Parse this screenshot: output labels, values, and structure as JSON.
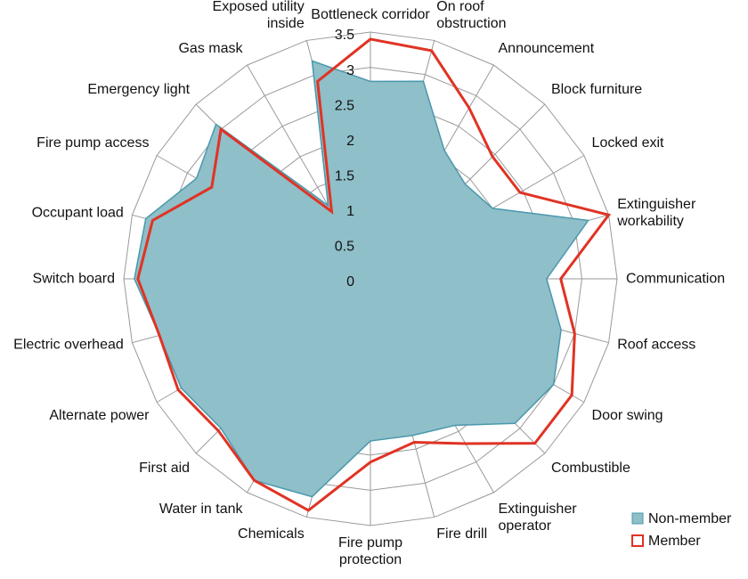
{
  "chart_data": {
    "type": "radar",
    "categories": [
      "Bottleneck corridor",
      "On roof\nobstruction",
      "Announcement",
      "Block furniture",
      "Locked exit",
      "Extinguisher\nworkability",
      "Communication",
      "Roof access",
      "Door swing",
      "Combustible",
      "Extinguisher\noperator",
      "Fire drill",
      "Fire pump\nprotection",
      "Chemicals",
      "Water in tank",
      "First aid",
      "Alternate power",
      "Electric overhead",
      "Switch board",
      "Occupant load",
      "Fire pump access",
      "Emergency light",
      "Gas mask",
      "Exposed utility\ninside"
    ],
    "series": [
      {
        "name": "Non-member",
        "color": "#8fbfc8",
        "edge_color": "#4a98ad",
        "filled": true,
        "values": [
          2.8,
          2.9,
          2.1,
          1.9,
          2.0,
          3.2,
          2.5,
          2.8,
          3.0,
          2.9,
          2.4,
          2.3,
          2.3,
          3.2,
          3.3,
          3.0,
          3.1,
          3.1,
          3.35,
          3.3,
          2.85,
          3.1,
          1.2,
          3.2
        ]
      },
      {
        "name": "Member",
        "color": "#e03324",
        "filled": false,
        "values": [
          3.4,
          3.35,
          2.8,
          2.45,
          2.45,
          3.5,
          2.7,
          3.0,
          3.3,
          3.3,
          2.7,
          2.4,
          2.6,
          3.4,
          3.3,
          3.05,
          3.15,
          3.1,
          3.3,
          3.2,
          2.6,
          3.0,
          1.1,
          2.9
        ]
      }
    ],
    "ylim": [
      0,
      3.5
    ],
    "yticks": [
      0,
      0.5,
      1,
      1.5,
      2,
      2.5,
      3,
      3.5
    ],
    "grid": true,
    "legend": "lower right"
  }
}
